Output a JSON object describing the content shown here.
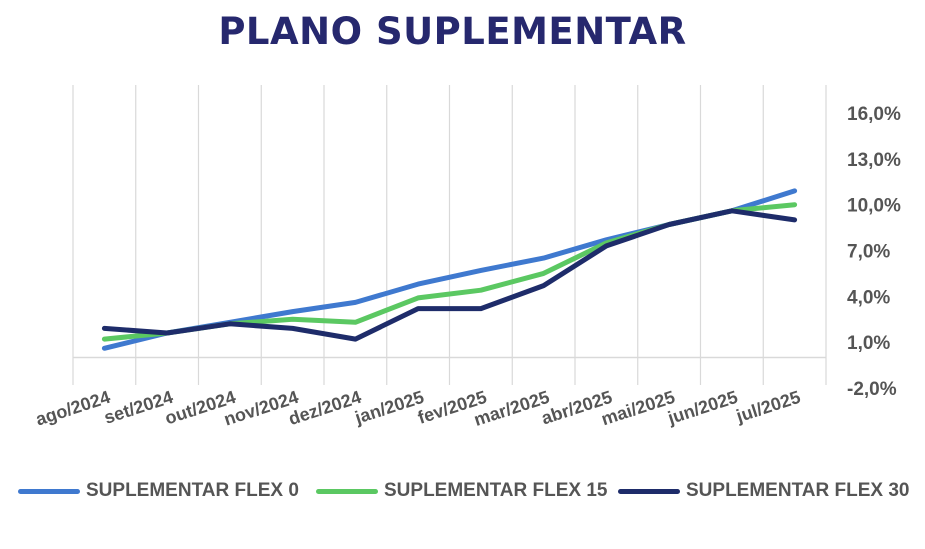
{
  "chart_data": {
    "type": "line",
    "title": "PLANO SUPLEMENTAR",
    "categories": [
      "ago/2024",
      "set/2024",
      "out/2024",
      "nov/2024",
      "dez/2024",
      "jan/2025",
      "fev/2025",
      "mar/2025",
      "abr/2025",
      "mai/2025",
      "jun/2025",
      "jul/2025"
    ],
    "y_ticks": [
      "16,0%",
      "13,0%",
      "10,0%",
      "7,0%",
      "4,0%",
      "1,0%",
      "-2,0%"
    ],
    "ylim": [
      -2,
      16
    ],
    "y_axis_position": "right",
    "grid": "vertical",
    "legend_position": "bottom",
    "series": [
      {
        "name": "SUPLEMENTAR FLEX 0",
        "color": "#3f79cf",
        "values": [
          0.6,
          1.6,
          2.3,
          3.0,
          3.6,
          4.8,
          5.7,
          6.5,
          7.7,
          8.7,
          9.6,
          10.9
        ]
      },
      {
        "name": "SUPLEMENTAR FLEX 15",
        "color": "#5bc862",
        "values": [
          1.2,
          1.6,
          2.2,
          2.5,
          2.3,
          3.9,
          4.4,
          5.5,
          7.5,
          8.7,
          9.6,
          10.0
        ]
      },
      {
        "name": "SUPLEMENTAR FLEX 30",
        "color": "#1e2c6a",
        "values": [
          1.9,
          1.6,
          2.2,
          1.9,
          1.2,
          3.2,
          3.2,
          4.7,
          7.3,
          8.7,
          9.6,
          9.0
        ]
      }
    ]
  }
}
